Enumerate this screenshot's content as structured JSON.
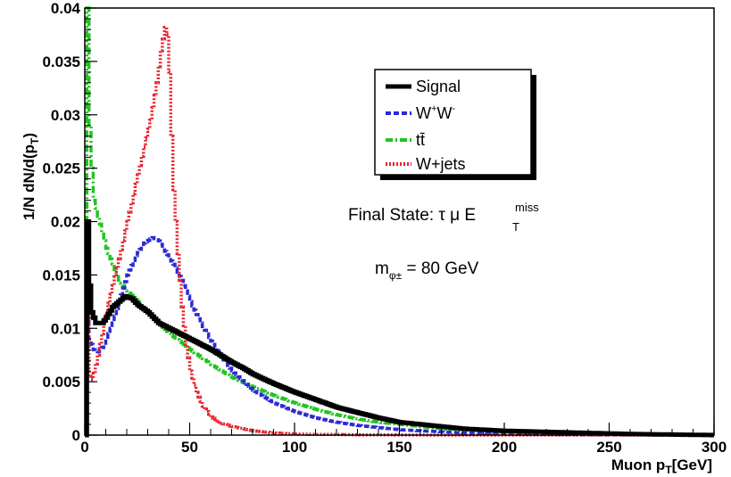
{
  "chart_data": {
    "type": "line",
    "xlabel": "Muon p",
    "xlabel_sub": "T",
    "xlabel_unit": "[GeV]",
    "ylabel": "1/N dN/d(p",
    "ylabel_sub": "T",
    "ylabel_close": ")",
    "xlim": [
      0,
      300
    ],
    "ylim": [
      0,
      0.04
    ],
    "x_ticks": [
      0,
      50,
      100,
      150,
      200,
      250,
      300
    ],
    "x_tick_labels": [
      "0",
      "50",
      "100",
      "150",
      "200",
      "250",
      "300"
    ],
    "y_ticks": [
      0,
      0.005,
      0.01,
      0.015,
      0.02,
      0.025,
      0.03,
      0.035,
      0.04
    ],
    "y_tick_labels": [
      "0",
      "0.005",
      "0.01",
      "0.015",
      "0.02",
      "0.025",
      "0.03",
      "0.035",
      "0.04"
    ],
    "grid": false,
    "legend_position": "upper-center-right",
    "series": [
      {
        "name": "Signal",
        "color": "#000000",
        "style": "solid",
        "x": [
          0,
          1,
          2,
          3,
          5,
          8,
          10,
          13,
          16,
          19,
          22,
          25,
          30,
          35,
          40,
          45,
          50,
          55,
          60,
          65,
          70,
          75,
          80,
          90,
          100,
          110,
          120,
          130,
          140,
          150,
          160,
          170,
          180,
          190,
          200,
          220,
          240,
          260,
          280,
          300
        ],
        "y": [
          0.0,
          0.02,
          0.014,
          0.0115,
          0.0105,
          0.0105,
          0.011,
          0.012,
          0.0125,
          0.013,
          0.0128,
          0.0122,
          0.0115,
          0.0105,
          0.01,
          0.0095,
          0.009,
          0.0085,
          0.008,
          0.0074,
          0.0068,
          0.0063,
          0.0057,
          0.0048,
          0.004,
          0.0033,
          0.0026,
          0.0021,
          0.0016,
          0.0012,
          0.001,
          0.0008,
          0.0006,
          0.0005,
          0.0004,
          0.0003,
          0.0002,
          0.0001,
          5e-05,
          0.0
        ]
      },
      {
        "name": "W+W-",
        "name_parts": [
          "W",
          "+",
          "W",
          "-"
        ],
        "color": "#2b2bd6",
        "style": "dashed",
        "x": [
          0,
          1,
          2,
          4,
          6,
          8,
          10,
          13,
          16,
          20,
          24,
          28,
          32,
          35,
          38,
          42,
          46,
          50,
          55,
          60,
          65,
          70,
          80,
          90,
          100,
          110,
          120,
          130,
          140,
          150,
          160,
          170,
          180,
          200,
          220,
          240,
          260,
          280,
          300
        ],
        "y": [
          0.0,
          0.018,
          0.009,
          0.008,
          0.0078,
          0.0082,
          0.009,
          0.0105,
          0.0125,
          0.015,
          0.0168,
          0.018,
          0.0185,
          0.0182,
          0.0172,
          0.016,
          0.0145,
          0.0125,
          0.0105,
          0.0088,
          0.0073,
          0.006,
          0.0042,
          0.003,
          0.0022,
          0.0016,
          0.0012,
          0.0009,
          0.0007,
          0.0005,
          0.0004,
          0.0003,
          0.0002,
          0.0001,
          6e-05,
          3e-05,
          2e-05,
          1e-05,
          0.0
        ]
      },
      {
        "name": "tt̄",
        "color": "#22c322",
        "style": "dashdot",
        "x": [
          0,
          1,
          2,
          3,
          4,
          6,
          8,
          10,
          13,
          16,
          20,
          25,
          30,
          35,
          40,
          45,
          50,
          55,
          60,
          65,
          70,
          80,
          90,
          100,
          110,
          120,
          130,
          140,
          150,
          160,
          170,
          180,
          200,
          220,
          240,
          260,
          280,
          300
        ],
        "y": [
          0.0,
          0.04,
          0.029,
          0.025,
          0.022,
          0.0205,
          0.019,
          0.0175,
          0.016,
          0.0145,
          0.0135,
          0.0125,
          0.0115,
          0.0105,
          0.0095,
          0.0088,
          0.008,
          0.0073,
          0.0066,
          0.006,
          0.0054,
          0.0045,
          0.0037,
          0.003,
          0.0024,
          0.0019,
          0.0015,
          0.0012,
          0.001,
          0.0008,
          0.0006,
          0.0005,
          0.0003,
          0.0002,
          0.0001,
          6e-05,
          3e-05,
          0.0
        ]
      },
      {
        "name": "W+jets",
        "color": "#e8202a",
        "style": "dotted",
        "x": [
          0,
          1,
          2,
          3,
          4,
          6,
          8,
          10,
          13,
          16,
          20,
          24,
          28,
          31,
          34,
          36,
          38,
          39,
          40,
          41,
          42,
          44,
          46,
          48,
          50,
          53,
          56,
          60,
          65,
          70,
          80,
          90,
          100,
          110,
          120,
          130,
          140,
          150,
          170,
          200,
          250,
          300
        ],
        "y": [
          0.0,
          0.017,
          0.0055,
          0.0052,
          0.0058,
          0.0075,
          0.0095,
          0.0115,
          0.014,
          0.0165,
          0.02,
          0.0235,
          0.027,
          0.0295,
          0.033,
          0.036,
          0.0382,
          0.0375,
          0.034,
          0.028,
          0.023,
          0.017,
          0.012,
          0.0085,
          0.006,
          0.004,
          0.0027,
          0.0017,
          0.0011,
          0.0008,
          0.0004,
          0.0002,
          0.0001,
          7e-05,
          5e-05,
          3e-05,
          2e-05,
          1e-05,
          0.0,
          0.0,
          0.0,
          0.0
        ]
      }
    ],
    "annotations": {
      "final_state_prefix": "Final State: τ μ E",
      "final_state_sub": "T",
      "final_state_sup": "miss",
      "mass_prefix": "m",
      "mass_sub": "φ±",
      "mass_suffix": " = 80 GeV"
    }
  }
}
